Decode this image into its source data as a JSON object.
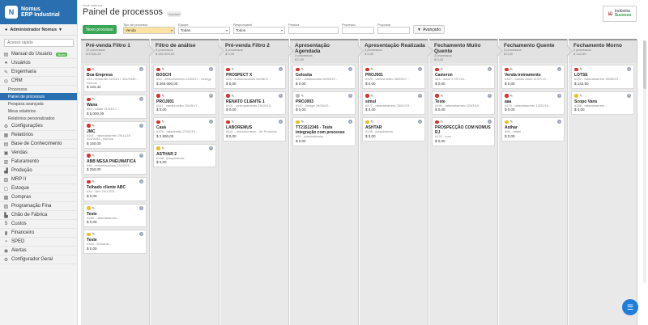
{
  "sidebar": {
    "logo_line1": "Nomus",
    "logo_line2": "ERP Industrial",
    "user": "Administrador Nomus",
    "quick_placeholder": "Acesso rápido",
    "items": [
      {
        "label": "Manual do Usuário",
        "icon": "book-icon",
        "badge": "Novo"
      },
      {
        "label": "Usuários",
        "icon": "user-icon"
      },
      {
        "label": "Engenharia",
        "icon": "tools-icon"
      },
      {
        "label": "CRM",
        "icon": "crm-icon"
      }
    ],
    "crm_sub": [
      {
        "label": "Processos",
        "active": false
      },
      {
        "label": "Painel de processos",
        "active": true
      },
      {
        "label": "Pesquisa avançada",
        "active": false
      },
      {
        "label": "Meus relatórios",
        "active": false
      },
      {
        "label": "Relatórios personalizados",
        "active": false
      }
    ],
    "items2": [
      {
        "label": "Configurações",
        "icon": "gear-icon"
      },
      {
        "label": "Relatórios",
        "icon": "report-icon"
      },
      {
        "label": "Base de Conhecimento",
        "icon": "book-icon"
      },
      {
        "label": "Vendas",
        "icon": "cart-icon"
      },
      {
        "label": "Faturamento",
        "icon": "invoice-icon"
      },
      {
        "label": "Produção",
        "icon": "factory-icon"
      },
      {
        "label": "MRP II",
        "icon": "mrp-icon"
      },
      {
        "label": "Estoque",
        "icon": "box-icon"
      },
      {
        "label": "Compras",
        "icon": "bag-icon"
      },
      {
        "label": "Programação Fina",
        "icon": "calendar-icon"
      },
      {
        "label": "Chão de Fábrica",
        "icon": "floor-icon"
      },
      {
        "label": "Custos",
        "icon": "money-icon"
      },
      {
        "label": "Financeiro",
        "icon": "finance-icon"
      },
      {
        "label": "SPED",
        "icon": "sped-icon"
      },
      {
        "label": "Alertas",
        "icon": "bell-icon"
      },
      {
        "label": "Configurador Geral",
        "icon": "gear-icon"
      }
    ]
  },
  "header": {
    "crumb": "Você está em:",
    "title": "Painel de processos",
    "print": "Imprimir",
    "brand1": "Indústria",
    "brand2": "Sucesso"
  },
  "filters": {
    "new_button": "Novo processo",
    "tipo_label": "Tipo de processo",
    "tipo_value": "Venda",
    "equipe_label": "Equipe",
    "equipe_value": "Todas",
    "responsavel_label": "Responsável",
    "responsavel_value": "Todos",
    "pessoa_label": "Pessoa",
    "pessoa_value": "",
    "processo_label": "Processo",
    "processo_value": "",
    "proposta_label": "Proposta",
    "proposta_value": "",
    "advanced": "Avançado"
  },
  "columns": [
    {
      "title": "Pré-venda Filtro 1",
      "count": "12 processos",
      "total": "$ 5.534,42",
      "cards": [
        {
          "dot": "red",
          "name": "Boa Empresa",
          "desc": "#33 - fernando 24/03/17 324/0445 - Nomus",
          "val": "$ 134,42"
        },
        {
          "dot": "red",
          "name": "Wana",
          "desc": "#52 - rafael 31/03/17 -",
          "val": "$ 5.000,00"
        },
        {
          "dot": "red",
          "name": "JMC",
          "desc": "#101 - rafaelabarreto 29/11/18 324/0445 - Nomus",
          "val": "$ 150,00"
        },
        {
          "dot": "red",
          "name": "ABB MESA PNEUMATICA",
          "desc": "#46 - antonioscarias 23/12/15 -",
          "val": "$ 250,00"
        },
        {
          "dot": "red",
          "name": "Telhado cliente ABC",
          "desc": "#34 - alex 23/12/15 -",
          "val": "$ 0,00"
        },
        {
          "dot": "yellow",
          "name": "Teste",
          "desc": "#165 - rafaelabarreto -",
          "val": "$ 0,00"
        },
        {
          "dot": "yellow",
          "name": "Teste",
          "desc": "#164 - leonardo -",
          "val": "$ 0,00"
        }
      ]
    },
    {
      "title": "Filtro de análise",
      "count": "4 processos",
      "total": "$ 262.500,00",
      "cards": [
        {
          "dot": "red",
          "name": "BOSCH",
          "desc": "#40 - celsomonteiro 24/03/17 - Acergy",
          "val": "$ 260.000,00"
        },
        {
          "dot": "red",
          "name": "PROJ001",
          "desc": "#111 - camila seiko 25/09/17 -",
          "val": "$ 0,00"
        },
        {
          "dot": "red",
          "name": "Casá",
          "desc": "#109 - rafaelhetto 27/02/19 -",
          "val": "$ 2.500,00"
        },
        {
          "dot": "yellow",
          "name": "ASTHAR 2",
          "desc": "#136 - jcaspimenta -",
          "val": "$ 0,00"
        }
      ]
    },
    {
      "title": "Pré-venda Filtro 2",
      "count": "3 processos",
      "total": "$ 0,00",
      "cards": [
        {
          "dot": "red",
          "name": "PROSPECT X",
          "desc": "#46 - antonioscarias 04/08/17 -",
          "val": "$ 0,00"
        },
        {
          "dot": "red",
          "name": "RENATO CLIENTE 1",
          "desc": "#101 - pedropameras 19/10/18 -",
          "val": "$ 0,00"
        },
        {
          "dot": "red",
          "name": "LABOREMUS",
          "desc": "#141 - celsomonteiro - Air Products",
          "val": "$ 0,00"
        }
      ]
    },
    {
      "title": "Apresentação Agendada",
      "count": "3 processos",
      "total": "$ 0,00",
      "cards": [
        {
          "dot": "red",
          "name": "Golosita",
          "desc": "#31 - rafaelacosta 06/04/19 -",
          "val": "$ 0,00"
        },
        {
          "dot": "grey",
          "name": "PROJ003",
          "desc": "#112 - Bridge 19/06/20 -",
          "val": "$ 0,00"
        },
        {
          "dot": "yellow",
          "name": "TT21512345 - Teste integração com processo",
          "desc": "#91 - administrador -",
          "val": "$ 0,00"
        }
      ]
    },
    {
      "title": "Apresentação Realizada",
      "count": "3 processos",
      "total": "$ 0,00",
      "cards": [
        {
          "dot": "red",
          "name": "PROJ001",
          "desc": "#129 - camila seiko 28/09/17 -",
          "val": "$ 0,00"
        },
        {
          "dot": "red",
          "name": "simul",
          "desc": "#277 - rafaelabarreto 25/02/19 -",
          "val": "$ 0,00"
        },
        {
          "dot": "yellow",
          "name": "ASHTAR",
          "desc": "#135 - jcaspimenta -",
          "val": "$ 0,00"
        }
      ]
    },
    {
      "title": "Fechamento Muito Quente",
      "count": "3 processos",
      "total": "$ 0,00",
      "cards": [
        {
          "dot": "red",
          "name": "Cameron",
          "desc": "#24 - anne 27/07/16 -",
          "val": "$ 0,00"
        },
        {
          "dot": "red",
          "name": "Teste",
          "desc": "#190 - rafaelabarreto 02/03/19 -",
          "val": "$ 0,00"
        },
        {
          "dot": "red",
          "name": "PROSPECÇÃO COM NOMUS RJ",
          "desc": "#122 - com -",
          "val": "$ 0,00"
        }
      ]
    },
    {
      "title": "Fechamento Quente",
      "count": "3 processos",
      "total": "$ 0,00",
      "cards": [
        {
          "dot": "red",
          "name": "Venda treinamento",
          "desc": "#167 - camila seiko 11/07/19 -",
          "val": "$ 0,00"
        },
        {
          "dot": "red",
          "name": "aaa",
          "desc": "#175 - rafaelabarreto 12/02/19 -",
          "val": "$ 0,00"
        },
        {
          "dot": "yellow",
          "name": "Asthar",
          "desc": "#94 - rafael -",
          "val": "$ 0,00"
        }
      ]
    },
    {
      "title": "Fechamento Morno",
      "count": "2 processos",
      "total": "$ 142,50",
      "cards": [
        {
          "dot": "red",
          "name": "LOTSE",
          "desc": "#192 - rafaelabarreto 30/05/19 -",
          "val": "$ 142,50"
        },
        {
          "dot": "yellow",
          "name": "Scopo Vans",
          "desc": "#288 - rafaelabarreto -",
          "val": "$ 0,00"
        }
      ]
    }
  ]
}
